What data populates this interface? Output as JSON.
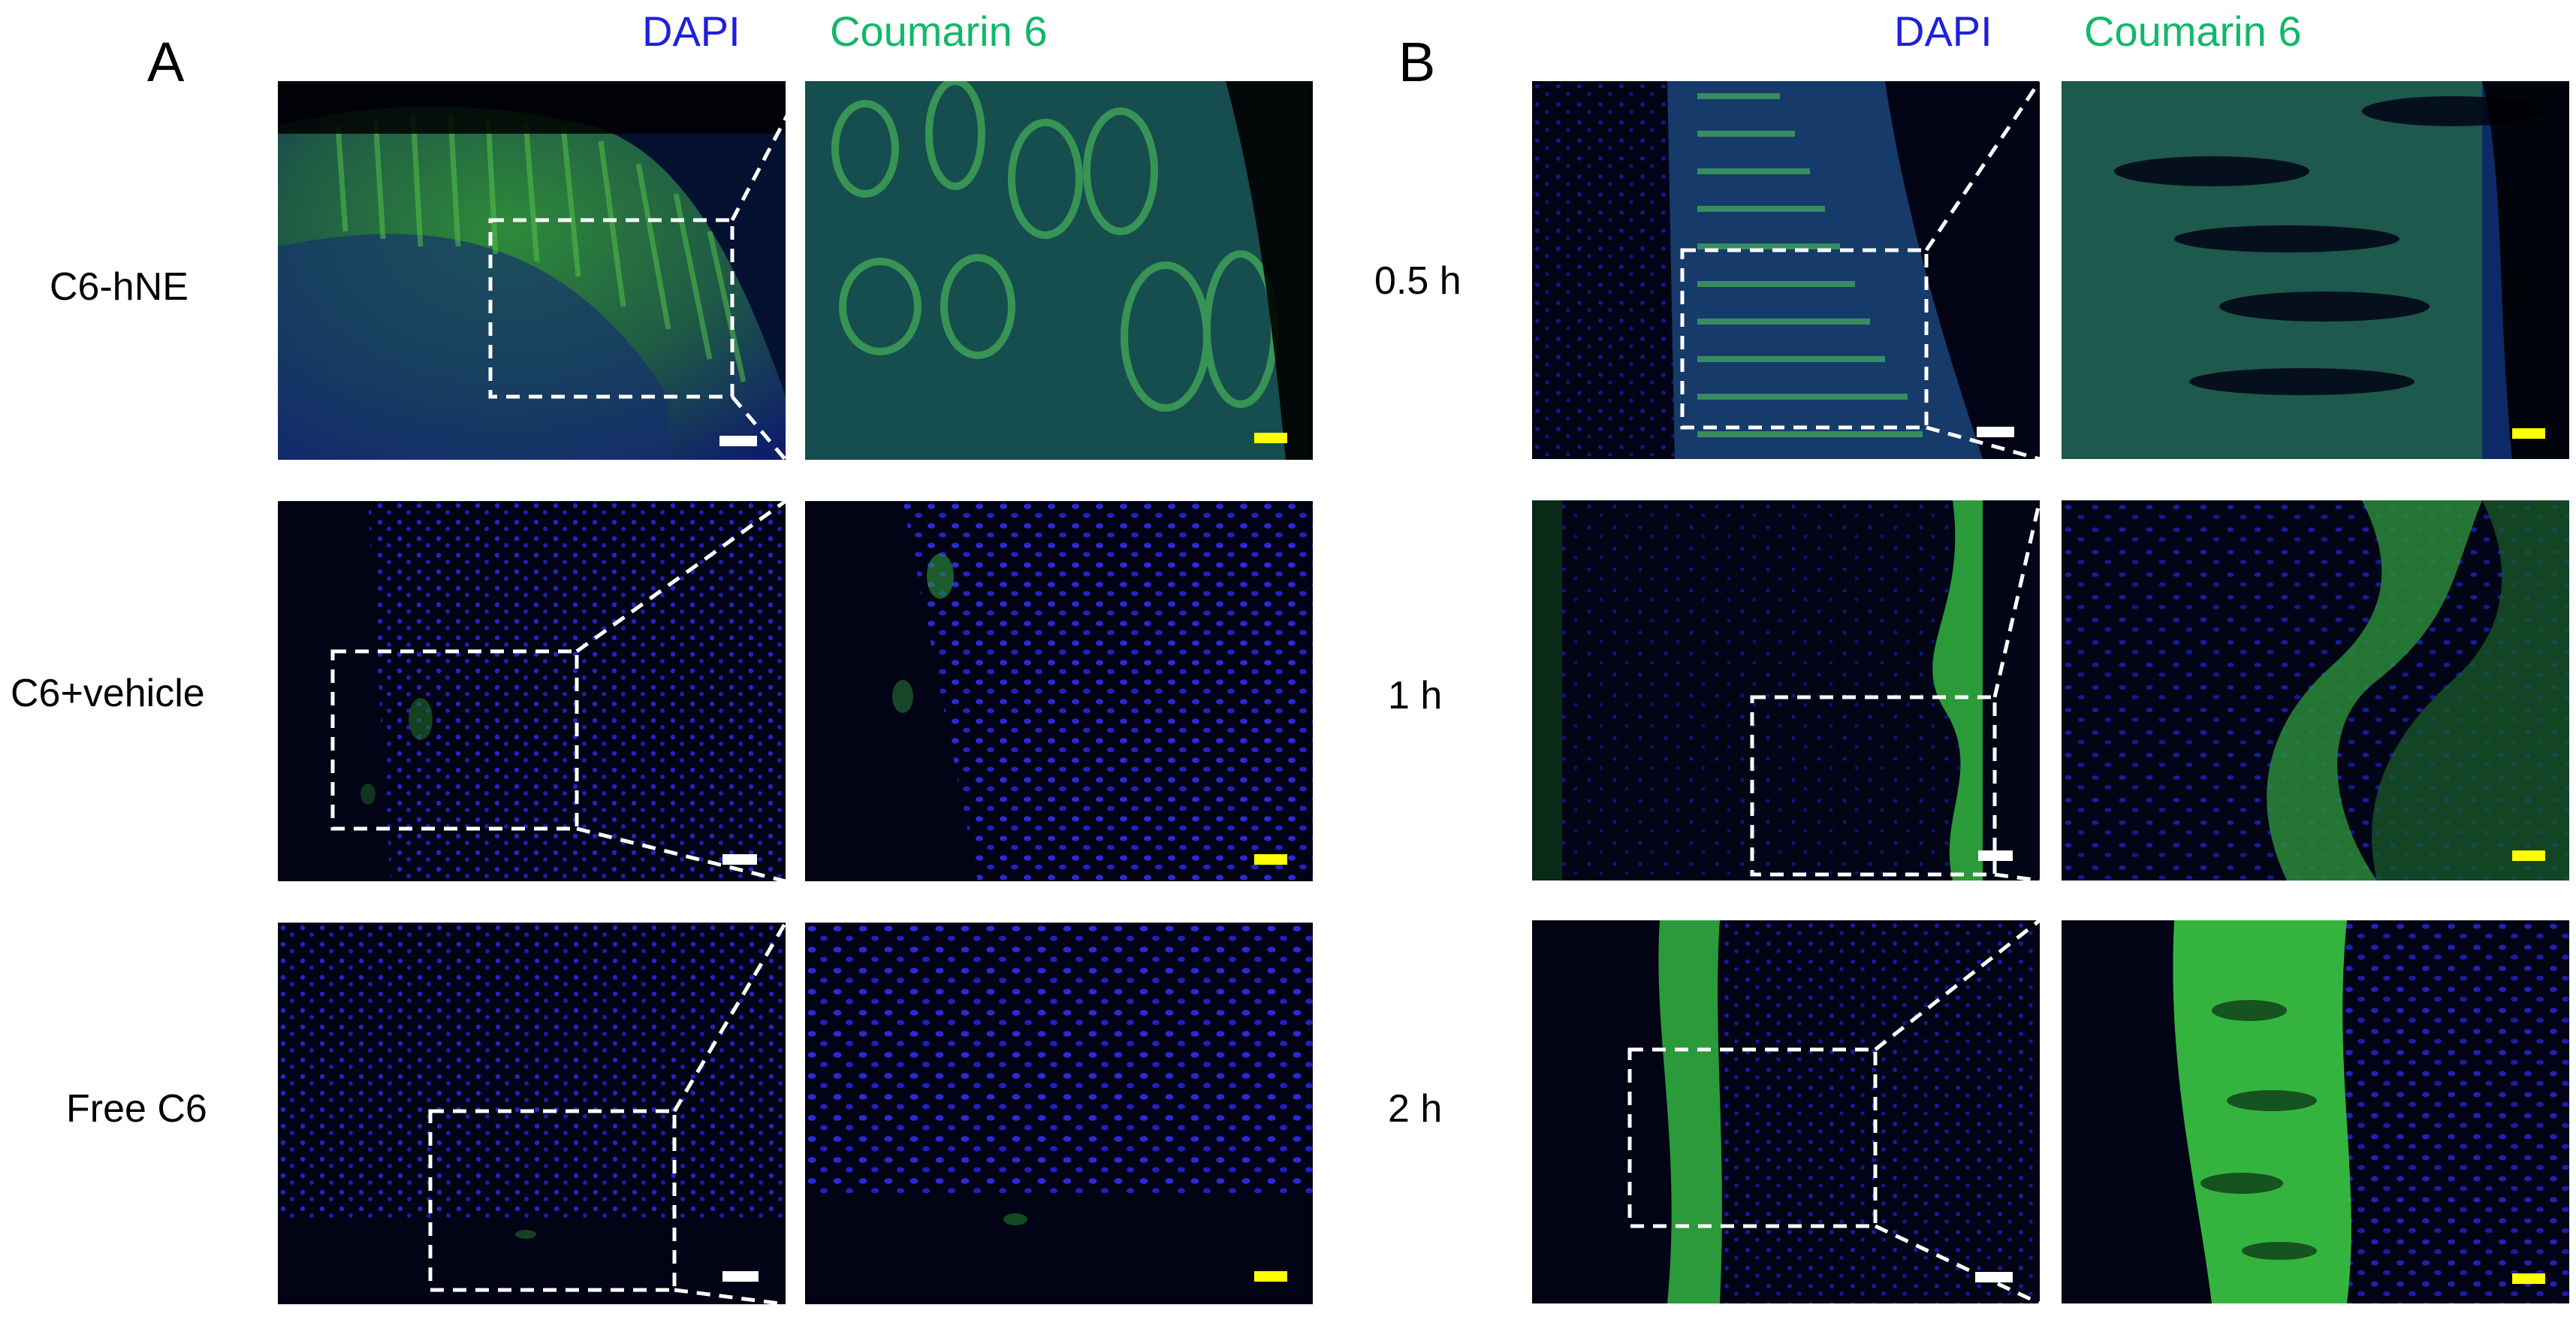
{
  "panels": {
    "A": {
      "letter": "A",
      "channel_dapi": "DAPI",
      "channel_c6": "Coumarin 6",
      "rows": [
        {
          "label": "C6-hNE"
        },
        {
          "label": "C6+vehicle"
        },
        {
          "label": "Free C6"
        }
      ]
    },
    "B": {
      "letter": "B",
      "channel_dapi": "DAPI",
      "channel_c6": "Coumarin 6",
      "rows": [
        {
          "label": "0.5 h"
        },
        {
          "label": "1 h"
        },
        {
          "label": "2 h"
        }
      ]
    }
  },
  "colors": {
    "dapi": "#1f1fe0",
    "coumarin6": "#11b86a",
    "scale_overview": "#ffffff",
    "scale_zoom": "#ffff00"
  }
}
